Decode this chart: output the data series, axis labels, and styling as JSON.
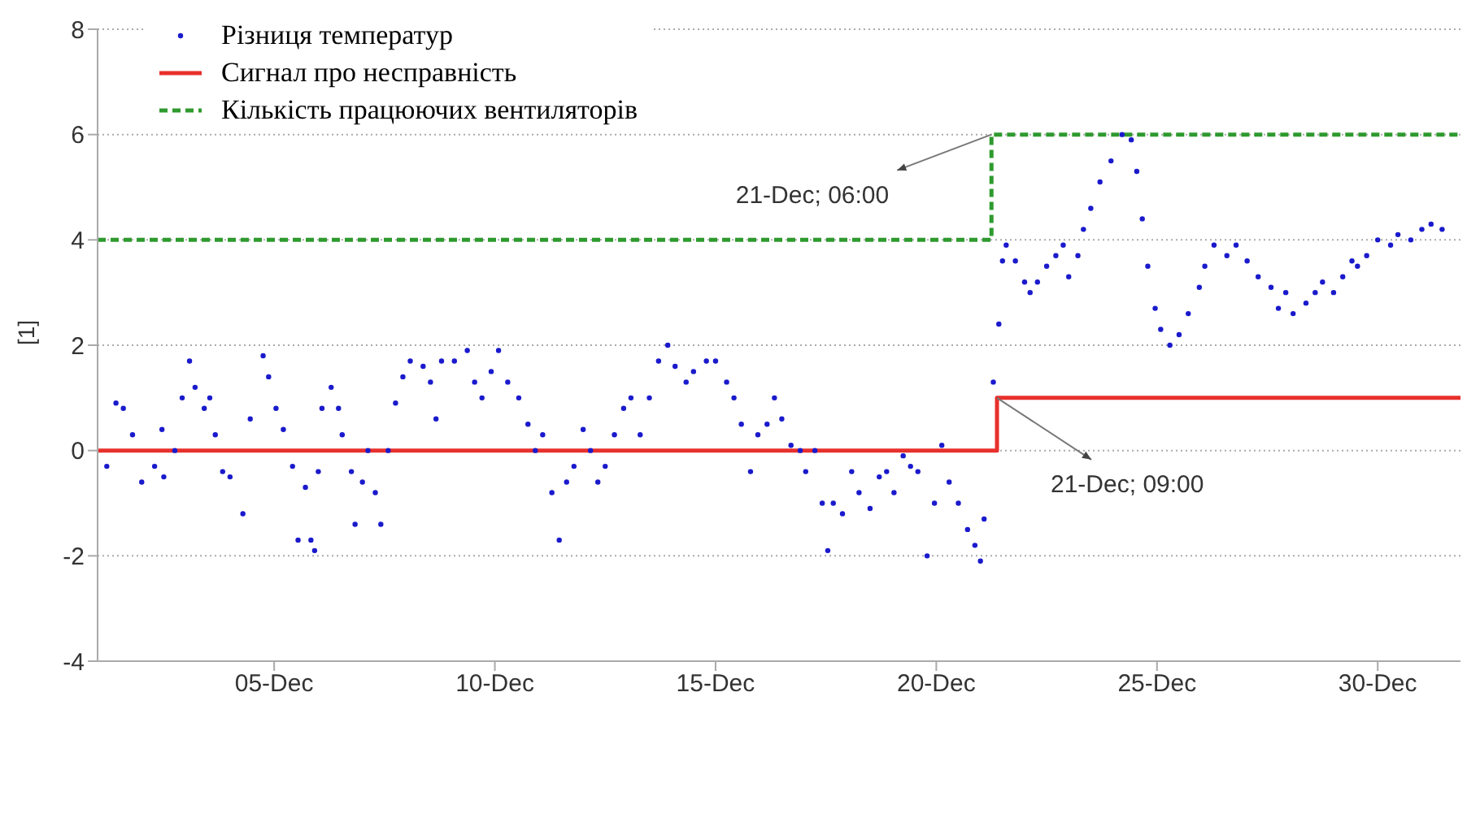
{
  "chart_data": {
    "type": "scatter",
    "ylabel": "[1]",
    "xlim": [
      "--12-01T00:00",
      "--12-31T21:00"
    ],
    "ylim": [
      -4,
      8
    ],
    "xticks": [
      {
        "value": "--12-05",
        "label": "05-Dec"
      },
      {
        "value": "--12-10",
        "label": "10-Dec"
      },
      {
        "value": "--12-15",
        "label": "15-Dec"
      },
      {
        "value": "--12-20",
        "label": "20-Dec"
      },
      {
        "value": "--12-25",
        "label": "25-Dec"
      },
      {
        "value": "--12-30",
        "label": "30-Dec"
      }
    ],
    "yticks": [
      -4,
      -2,
      0,
      2,
      4,
      6,
      8
    ],
    "grid": "y",
    "legend": "top left",
    "series": [
      {
        "name": "Різниця температур",
        "color": "#1a1acc",
        "marker": "circle",
        "x": [
          "--12-01T05:00",
          "--12-01T10:00",
          "--12-01T14:00",
          "--12-01T19:00",
          "--12-02T00:00",
          "--12-02T07:00",
          "--12-02T11:00",
          "--12-02T12:00",
          "--12-02T18:00",
          "--12-02T22:00",
          "--12-03T02:00",
          "--12-03T05:00",
          "--12-03T10:00",
          "--12-03T13:00",
          "--12-03T16:00",
          "--12-03T20:00",
          "--12-04T00:00",
          "--12-04T07:00",
          "--12-04T11:00",
          "--12-04T18:00",
          "--12-04T21:00",
          "--12-05T01:00",
          "--12-05T05:00",
          "--12-05T10:00",
          "--12-05T13:00",
          "--12-05T17:00",
          "--12-05T20:00",
          "--12-05T22:00",
          "--12-06T00:00",
          "--12-06T02:00",
          "--12-06T07:00",
          "--12-06T11:00",
          "--12-06T13:00",
          "--12-06T18:00",
          "--12-06T20:00",
          "--12-07T00:00",
          "--12-07T03:00",
          "--12-07T07:00",
          "--12-07T10:00",
          "--12-07T14:00",
          "--12-07T18:00",
          "--12-07T22:00",
          "--12-08T02:00",
          "--12-08T09:00",
          "--12-08T13:00",
          "--12-08T16:00",
          "--12-08T19:00",
          "--12-09T02:00",
          "--12-09T09:00",
          "--12-09T13:00",
          "--12-09T17:00",
          "--12-09T22:00",
          "--12-10T02:00",
          "--12-10T07:00",
          "--12-10T13:00",
          "--12-10T18:00",
          "--12-10T22:00",
          "--12-11T02:00",
          "--12-11T07:00",
          "--12-11T11:00",
          "--12-11T15:00",
          "--12-11T19:00",
          "--12-12T00:00",
          "--12-12T04:00",
          "--12-12T08:00",
          "--12-12T12:00",
          "--12-12T17:00",
          "--12-12T22:00",
          "--12-13T02:00",
          "--12-13T07:00",
          "--12-13T12:00",
          "--12-13T17:00",
          "--12-13T22:00",
          "--12-14T02:00",
          "--12-14T08:00",
          "--12-14T12:00",
          "--12-14T19:00",
          "--12-15T00:00",
          "--12-15T06:00",
          "--12-15T10:00",
          "--12-15T14:00",
          "--12-15T19:00",
          "--12-15T23:00",
          "--12-16T04:00",
          "--12-16T08:00",
          "--12-16T12:00",
          "--12-16T17:00",
          "--12-16T22:00",
          "--12-17T01:00",
          "--12-17T06:00",
          "--12-17T10:00",
          "--12-17T13:00",
          "--12-17T16:00",
          "--12-17T21:00",
          "--12-18T02:00",
          "--12-18T06:00",
          "--12-18T12:00",
          "--12-18T17:00",
          "--12-18T21:00",
          "--12-19T01:00",
          "--12-19T06:00",
          "--12-19T10:00",
          "--12-19T14:00",
          "--12-19T19:00",
          "--12-19T23:00",
          "--12-20T03:00",
          "--12-20T07:00",
          "--12-20T12:00",
          "--12-20T17:00",
          "--12-20T21:00",
          "--12-21T00:00",
          "--12-21T02:00",
          "--12-21T07:00",
          "--12-21T10:00",
          "--12-21T12:00",
          "--12-21T14:00",
          "--12-21T19:00",
          "--12-22T00:00",
          "--12-22T03:00",
          "--12-22T07:00",
          "--12-22T12:00",
          "--12-22T17:00",
          "--12-22T21:00",
          "--12-23T00:00",
          "--12-23T05:00",
          "--12-23T08:00",
          "--12-23T12:00",
          "--12-23T17:00",
          "--12-23T23:00",
          "--12-24T05:00",
          "--12-24T10:00",
          "--12-24T13:00",
          "--12-24T16:00",
          "--12-24T19:00",
          "--12-24T23:00",
          "--12-25T02:00",
          "--12-25T07:00",
          "--12-25T12:00",
          "--12-25T17:00",
          "--12-25T23:00",
          "--12-26T02:00",
          "--12-26T07:00",
          "--12-26T14:00",
          "--12-26T19:00",
          "--12-27T01:00",
          "--12-27T07:00",
          "--12-27T14:00",
          "--12-27T18:00",
          "--12-27T22:00",
          "--12-28T02:00",
          "--12-28T09:00",
          "--12-28T14:00",
          "--12-28T18:00",
          "--12-29T00:00",
          "--12-29T05:00",
          "--12-29T10:00",
          "--12-29T13:00",
          "--12-29T18:00",
          "--12-30T00:00",
          "--12-30T07:00",
          "--12-30T11:00",
          "--12-30T18:00",
          "--12-31T00:00",
          "--12-31T05:00",
          "--12-31T11:00"
        ],
        "values": [
          -0.3,
          0.9,
          0.8,
          0.3,
          -0.6,
          -0.3,
          0.4,
          -0.5,
          0,
          1.0,
          1.7,
          1.2,
          0.8,
          1.0,
          0.3,
          -0.4,
          -0.5,
          -1.2,
          0.6,
          1.8,
          1.4,
          0.8,
          0.4,
          -0.3,
          -1.7,
          -0.7,
          -1.7,
          -1.9,
          -0.4,
          0.8,
          1.2,
          0.8,
          0.3,
          -0.4,
          -1.4,
          -0.6,
          0,
          -0.8,
          -1.4,
          0,
          0.9,
          1.4,
          1.7,
          1.6,
          1.3,
          0.6,
          1.7,
          1.7,
          1.9,
          1.3,
          1.0,
          1.5,
          1.9,
          1.3,
          1.0,
          0.5,
          0,
          0.3,
          -0.8,
          -1.7,
          -0.6,
          -0.3,
          0.4,
          0,
          -0.6,
          -0.3,
          0.3,
          0.8,
          1.0,
          0.3,
          1.0,
          1.7,
          2.0,
          1.6,
          1.3,
          1.5,
          1.7,
          1.7,
          1.3,
          1.0,
          0.5,
          -0.4,
          0.3,
          0.5,
          1.0,
          0.6,
          0.1,
          0,
          -0.4,
          0,
          -1.0,
          -1.9,
          -1.0,
          -1.2,
          -0.4,
          -0.8,
          -1.1,
          -0.5,
          -0.4,
          -0.8,
          -0.1,
          -0.3,
          -0.4,
          -2.0,
          -1.0,
          0.1,
          -0.6,
          -1.0,
          -1.5,
          -1.8,
          -2.1,
          -1.3,
          1.3,
          2.4,
          3.6,
          3.9,
          3.6,
          3.2,
          3.0,
          3.2,
          3.5,
          3.7,
          3.9,
          3.3,
          3.7,
          4.2,
          4.6,
          5.1,
          5.5,
          6.0,
          5.9,
          5.3,
          4.4,
          3.5,
          2.7,
          2.3,
          2.0,
          2.2,
          2.6,
          3.1,
          3.5,
          3.9,
          3.7,
          3.9,
          3.6,
          3.3,
          3.1,
          2.7,
          3.0,
          2.6,
          2.8,
          3.0,
          3.2,
          3.0,
          3.3,
          3.6,
          3.5,
          3.7,
          4.0,
          3.9,
          4.1,
          4.0,
          4.2,
          4.3,
          4.2
        ]
      },
      {
        "name": "Сигнал про несправність",
        "type": "step",
        "color": "#e8302c",
        "line_style": "solid",
        "x": [
          "--12-01T00:00",
          "--12-21T09:00",
          "--12-31T21:00"
        ],
        "values": [
          0,
          1,
          1
        ]
      },
      {
        "name": "Кількість працюючих вентиляторів",
        "type": "step",
        "color": "#2e9a2e",
        "line_style": "dashed",
        "x": [
          "--12-01T00:00",
          "--12-21T06:00",
          "--12-31T21:00"
        ],
        "values": [
          4,
          6,
          6
        ]
      }
    ],
    "annotations": [
      {
        "text": "21-Dec; 06:00",
        "x": "--12-21T06:00",
        "y": 6
      },
      {
        "text": "21-Dec; 09:00",
        "x": "--12-21T09:00",
        "y": 1
      }
    ]
  }
}
